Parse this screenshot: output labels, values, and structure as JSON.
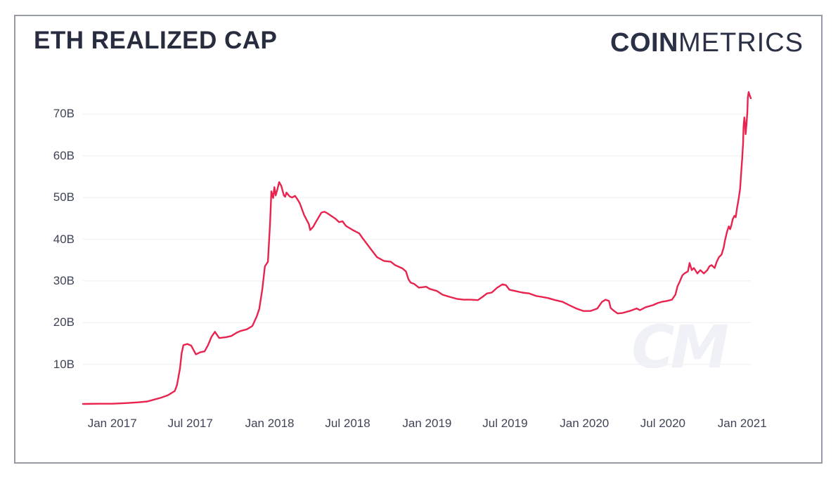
{
  "header": {
    "title": "ETH REALIZED CAP",
    "logo_bold": "COIN",
    "logo_light": "METRICS"
  },
  "watermark": {
    "text": "CM"
  },
  "colors": {
    "line": "#e8234e",
    "grid": "#f3f3f5",
    "title_text": "#272c3e",
    "axis_text": "#3f4456",
    "card_border": "#979ba5",
    "watermark": "#eff1f7",
    "background": "#ffffff"
  },
  "chart_data": {
    "type": "line",
    "title": "ETH REALIZED CAP",
    "y_unit": "B",
    "grid": "horizontal-only",
    "legend": "none",
    "x_domain": [
      "2016-10-25",
      "2021-01-21"
    ],
    "y_domain": [
      0,
      78
    ],
    "yticks": [
      {
        "value": 10,
        "label": "10B"
      },
      {
        "value": 20,
        "label": "20B"
      },
      {
        "value": 30,
        "label": "30B"
      },
      {
        "value": 40,
        "label": "40B"
      },
      {
        "value": 50,
        "label": "50B"
      },
      {
        "value": 60,
        "label": "60B"
      },
      {
        "value": 70,
        "label": "70B"
      }
    ],
    "xticks": [
      {
        "date": "2017-01-01",
        "label": "Jan 2017"
      },
      {
        "date": "2017-07-01",
        "label": "Jul 2017"
      },
      {
        "date": "2018-01-01",
        "label": "Jan 2018"
      },
      {
        "date": "2018-07-01",
        "label": "Jul 2018"
      },
      {
        "date": "2019-01-01",
        "label": "Jan 2019"
      },
      {
        "date": "2019-07-01",
        "label": "Jul 2019"
      },
      {
        "date": "2020-01-01",
        "label": "Jan 2020"
      },
      {
        "date": "2020-07-01",
        "label": "Jul 2020"
      },
      {
        "date": "2021-01-01",
        "label": "Jan 2021"
      }
    ],
    "points": [
      [
        "2016-10-25",
        0.5
      ],
      [
        "2016-12-01",
        0.55
      ],
      [
        "2017-01-01",
        0.55
      ],
      [
        "2017-02-02",
        0.7
      ],
      [
        "2017-03-02",
        0.9
      ],
      [
        "2017-03-23",
        1.1
      ],
      [
        "2017-04-03",
        1.4
      ],
      [
        "2017-04-24",
        2.0
      ],
      [
        "2017-05-10",
        2.6
      ],
      [
        "2017-05-26",
        3.6
      ],
      [
        "2017-05-31",
        5.0
      ],
      [
        "2017-06-07",
        9.0
      ],
      [
        "2017-06-11",
        12.7
      ],
      [
        "2017-06-15",
        14.6
      ],
      [
        "2017-06-24",
        14.9
      ],
      [
        "2017-07-03",
        14.5
      ],
      [
        "2017-07-14",
        12.4
      ],
      [
        "2017-07-24",
        12.9
      ],
      [
        "2017-08-03",
        13.1
      ],
      [
        "2017-08-11",
        14.6
      ],
      [
        "2017-08-19",
        16.6
      ],
      [
        "2017-08-27",
        17.8
      ],
      [
        "2017-09-06",
        16.3
      ],
      [
        "2017-09-21",
        16.5
      ],
      [
        "2017-10-04",
        16.8
      ],
      [
        "2017-10-15",
        17.5
      ],
      [
        "2017-10-25",
        18.0
      ],
      [
        "2017-11-09",
        18.4
      ],
      [
        "2017-11-22",
        19.2
      ],
      [
        "2017-12-02",
        21.5
      ],
      [
        "2017-12-08",
        23.3
      ],
      [
        "2017-12-15",
        28.0
      ],
      [
        "2017-12-21",
        33.5
      ],
      [
        "2017-12-28",
        34.6
      ],
      [
        "2018-01-02",
        44.0
      ],
      [
        "2018-01-05",
        51.5
      ],
      [
        "2018-01-09",
        49.9
      ],
      [
        "2018-01-12",
        52.5
      ],
      [
        "2018-01-15",
        50.5
      ],
      [
        "2018-01-19",
        52.0
      ],
      [
        "2018-01-23",
        53.7
      ],
      [
        "2018-01-28",
        52.8
      ],
      [
        "2018-02-03",
        50.5
      ],
      [
        "2018-02-06",
        50.2
      ],
      [
        "2018-02-09",
        51.2
      ],
      [
        "2018-02-16",
        50.3
      ],
      [
        "2018-02-22",
        50.0
      ],
      [
        "2018-03-01",
        50.4
      ],
      [
        "2018-03-07",
        49.5
      ],
      [
        "2018-03-12",
        48.6
      ],
      [
        "2018-03-22",
        45.8
      ],
      [
        "2018-04-02",
        43.6
      ],
      [
        "2018-04-05",
        42.2
      ],
      [
        "2018-04-12",
        43.0
      ],
      [
        "2018-04-18",
        44.1
      ],
      [
        "2018-05-01",
        46.4
      ],
      [
        "2018-05-08",
        46.6
      ],
      [
        "2018-05-14",
        46.3
      ],
      [
        "2018-05-21",
        45.8
      ],
      [
        "2018-06-03",
        44.9
      ],
      [
        "2018-06-11",
        44.1
      ],
      [
        "2018-06-19",
        44.3
      ],
      [
        "2018-06-27",
        43.2
      ],
      [
        "2018-07-13",
        42.2
      ],
      [
        "2018-07-28",
        41.4
      ],
      [
        "2018-08-05",
        40.2
      ],
      [
        "2018-08-21",
        38.0
      ],
      [
        "2018-09-07",
        35.7
      ],
      [
        "2018-09-23",
        34.8
      ],
      [
        "2018-10-09",
        34.6
      ],
      [
        "2018-10-19",
        33.8
      ],
      [
        "2018-11-05",
        33.0
      ],
      [
        "2018-11-13",
        32.3
      ],
      [
        "2018-11-19",
        30.4
      ],
      [
        "2018-11-24",
        29.6
      ],
      [
        "2018-12-02",
        29.3
      ],
      [
        "2018-12-13",
        28.4
      ],
      [
        "2018-12-30",
        28.6
      ],
      [
        "2019-01-07",
        28.1
      ],
      [
        "2019-01-24",
        27.6
      ],
      [
        "2019-02-06",
        26.7
      ],
      [
        "2019-02-22",
        26.2
      ],
      [
        "2019-03-11",
        25.7
      ],
      [
        "2019-03-27",
        25.5
      ],
      [
        "2019-04-12",
        25.5
      ],
      [
        "2019-04-29",
        25.4
      ],
      [
        "2019-05-10",
        26.2
      ],
      [
        "2019-05-20",
        27.0
      ],
      [
        "2019-05-31",
        27.2
      ],
      [
        "2019-06-13",
        28.4
      ],
      [
        "2019-06-25",
        29.2
      ],
      [
        "2019-07-03",
        29.0
      ],
      [
        "2019-07-11",
        27.9
      ],
      [
        "2019-07-24",
        27.6
      ],
      [
        "2019-08-10",
        27.2
      ],
      [
        "2019-08-26",
        27.0
      ],
      [
        "2019-09-11",
        26.4
      ],
      [
        "2019-09-23",
        26.2
      ],
      [
        "2019-10-09",
        25.9
      ],
      [
        "2019-10-25",
        25.4
      ],
      [
        "2019-11-11",
        25.0
      ],
      [
        "2019-11-27",
        24.2
      ],
      [
        "2019-12-13",
        23.4
      ],
      [
        "2019-12-30",
        22.8
      ],
      [
        "2020-01-15",
        22.8
      ],
      [
        "2020-01-31",
        23.4
      ],
      [
        "2020-02-11",
        25.0
      ],
      [
        "2020-02-19",
        25.5
      ],
      [
        "2020-02-27",
        25.2
      ],
      [
        "2020-03-02",
        23.5
      ],
      [
        "2020-03-10",
        22.8
      ],
      [
        "2020-03-18",
        22.2
      ],
      [
        "2020-03-29",
        22.3
      ],
      [
        "2020-04-15",
        22.8
      ],
      [
        "2020-05-01",
        23.4
      ],
      [
        "2020-05-09",
        23.0
      ],
      [
        "2020-05-22",
        23.7
      ],
      [
        "2020-06-08",
        24.2
      ],
      [
        "2020-06-19",
        24.7
      ],
      [
        "2020-06-29",
        25.0
      ],
      [
        "2020-07-10",
        25.2
      ],
      [
        "2020-07-22",
        25.5
      ],
      [
        "2020-07-30",
        26.7
      ],
      [
        "2020-08-04",
        28.7
      ],
      [
        "2020-08-09",
        29.8
      ],
      [
        "2020-08-15",
        31.3
      ],
      [
        "2020-08-20",
        31.8
      ],
      [
        "2020-08-28",
        32.3
      ],
      [
        "2020-09-01",
        34.3
      ],
      [
        "2020-09-06",
        32.6
      ],
      [
        "2020-09-11",
        33.1
      ],
      [
        "2020-09-19",
        31.8
      ],
      [
        "2020-09-26",
        32.6
      ],
      [
        "2020-10-04",
        31.8
      ],
      [
        "2020-10-12",
        32.6
      ],
      [
        "2020-10-17",
        33.5
      ],
      [
        "2020-10-22",
        33.8
      ],
      [
        "2020-10-29",
        33.1
      ],
      [
        "2020-11-03",
        34.6
      ],
      [
        "2020-11-08",
        35.7
      ],
      [
        "2020-11-14",
        36.3
      ],
      [
        "2020-11-19",
        38.0
      ],
      [
        "2020-11-22",
        39.7
      ],
      [
        "2020-11-27",
        41.9
      ],
      [
        "2020-12-01",
        43.1
      ],
      [
        "2020-12-04",
        42.4
      ],
      [
        "2020-12-07",
        43.4
      ],
      [
        "2020-12-10",
        44.8
      ],
      [
        "2020-12-14",
        45.6
      ],
      [
        "2020-12-17",
        45.3
      ],
      [
        "2020-12-20",
        47.5
      ],
      [
        "2020-12-23",
        49.2
      ],
      [
        "2020-12-27",
        52.0
      ],
      [
        "2020-12-30",
        56.5
      ],
      [
        "2021-01-01",
        59.3
      ],
      [
        "2021-01-03",
        63.0
      ],
      [
        "2021-01-04",
        66.8
      ],
      [
        "2021-01-06",
        69.2
      ],
      [
        "2021-01-08",
        67.2
      ],
      [
        "2021-01-09",
        65.2
      ],
      [
        "2021-01-11",
        67.7
      ],
      [
        "2021-01-13",
        70.6
      ],
      [
        "2021-01-14",
        73.9
      ],
      [
        "2021-01-16",
        75.3
      ],
      [
        "2021-01-18",
        74.6
      ],
      [
        "2021-01-21",
        73.8
      ]
    ]
  }
}
